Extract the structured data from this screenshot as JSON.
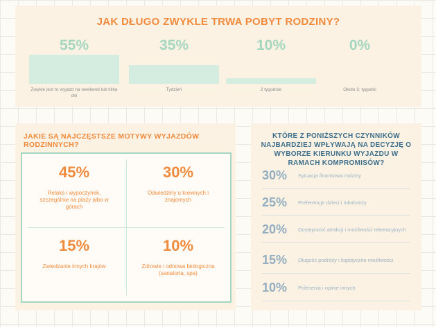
{
  "duration": {
    "title": "JAK DŁUGO ZWYKLE TRWA POBYT RODZINY?",
    "items": [
      {
        "pct": "55%",
        "value": 55,
        "label": "Zwykle jest to wyjazd na weekend lub kilka dni"
      },
      {
        "pct": "35%",
        "value": 35,
        "label": "Tydzień"
      },
      {
        "pct": "10%",
        "value": 10,
        "label": "2 tygodnie"
      },
      {
        "pct": "0%",
        "value": 0,
        "label": "Około 3. tygodni"
      }
    ]
  },
  "motives": {
    "title": "JAKIE SĄ NAJCZĘSTSZE MOTYWY WYJAZDÓW RODZINNYCH?",
    "items": [
      {
        "pct": "45%",
        "label": "Relaks i wypoczynek, szczególnie na plaży albo w górach"
      },
      {
        "pct": "30%",
        "label": "Odwiedziny u krewnych i znajomych"
      },
      {
        "pct": "15%",
        "label": "Zwiedzanie innych krajów"
      },
      {
        "pct": "10%",
        "label": "Zdrowie i odnowa biologiczna (sanatoria, spa)"
      }
    ]
  },
  "factors": {
    "title": "KTÓRE Z PONIŻSZYCH CZYNNIKÓW NAJBARDZIEJ WPŁYWAJĄ NA DECYZJĘ O WYBORZE KIERUNKU WYJAZDU W RAMACH KOMPROMISÓW?",
    "items": [
      {
        "pct": "30%",
        "label": "Sytuacja finansowa rodziny"
      },
      {
        "pct": "25%",
        "label": "Preferencje dzieci i młodzieży"
      },
      {
        "pct": "20%",
        "label": "Dostępność atrakcji i możliwości rekreacyjnych"
      },
      {
        "pct": "15%",
        "label": "Długość podróży i logistyczne możliwości"
      },
      {
        "pct": "10%",
        "label": "Polecenia i opinie innych"
      }
    ]
  }
}
